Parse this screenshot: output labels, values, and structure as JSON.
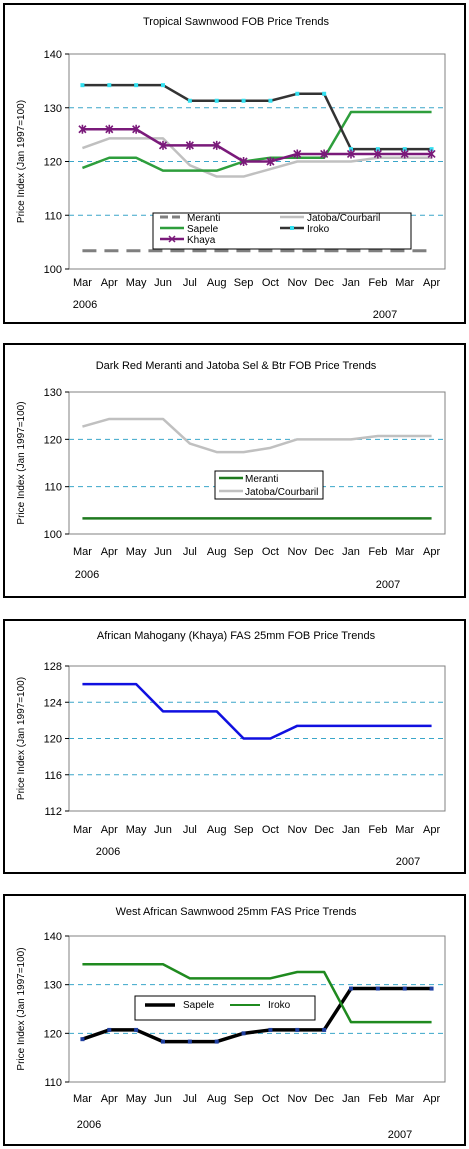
{
  "categories": [
    "Mar",
    "Apr",
    "May",
    "Jun",
    "Jul",
    "Aug",
    "Sep",
    "Oct",
    "Nov",
    "Dec",
    "Jan",
    "Feb",
    "Mar",
    "Apr"
  ],
  "year_labels": [
    "2006",
    "2007"
  ],
  "chart_data": [
    {
      "type": "line",
      "title": "Tropical Sawnwood FOB Price Trends",
      "ylabel": "Price Index (Jan 1997=100)",
      "xlabel": "",
      "ylim": [
        100,
        140
      ],
      "yticks": [
        100,
        110,
        120,
        130,
        140
      ],
      "grid": true,
      "legend_position": "bottom-center",
      "year_labels": [
        "2006",
        "2007"
      ],
      "categories": [
        "Mar",
        "Apr",
        "May",
        "Jun",
        "Jul",
        "Aug",
        "Sep",
        "Oct",
        "Nov",
        "Dec",
        "Jan",
        "Feb",
        "Mar",
        "Apr"
      ],
      "series": [
        {
          "name": "Meranti",
          "color": "#7f7f7f",
          "style": "dashed",
          "values": [
            103.4,
            103.4,
            103.4,
            103.4,
            103.4,
            103.4,
            103.4,
            103.4,
            103.4,
            103.4,
            103.4,
            103.4,
            103.4,
            103.4
          ]
        },
        {
          "name": "Jatoba/Courbaril",
          "color": "#c0c0c0",
          "style": "solid",
          "values": [
            122.5,
            124.3,
            124.3,
            124.3,
            119.3,
            117.2,
            117.2,
            118.6,
            120,
            120,
            120,
            120.7,
            120.7,
            120.7
          ]
        },
        {
          "name": "Sapele",
          "color": "#2e9e3c",
          "style": "solid",
          "values": [
            118.8,
            120.7,
            120.7,
            118.3,
            118.3,
            118.3,
            120,
            120.7,
            120.7,
            120.7,
            129.2,
            129.2,
            129.2,
            129.2
          ]
        },
        {
          "name": "Iroko",
          "color": "#333333",
          "style": "solid",
          "marker": "cyan-square",
          "values": [
            134.2,
            134.2,
            134.2,
            134.2,
            131.3,
            131.3,
            131.3,
            131.3,
            132.6,
            132.6,
            122.3,
            122.3,
            122.3,
            122.3
          ]
        },
        {
          "name": "Khaya",
          "color": "#7a1a7a",
          "style": "solid",
          "marker": "star",
          "values": [
            126,
            126,
            126,
            123,
            123,
            123,
            120,
            120,
            121.4,
            121.4,
            121.4,
            121.4,
            121.4,
            121.4
          ]
        }
      ]
    },
    {
      "type": "line",
      "title": "Dark Red Meranti and Jatoba Sel & Btr FOB Price Trends",
      "ylabel": "Price Index (Jan 1997=100)",
      "xlabel": "",
      "ylim": [
        100,
        130
      ],
      "yticks": [
        100,
        110,
        120,
        130
      ],
      "grid": true,
      "legend_position": "center",
      "year_labels": [
        "2006",
        "2007"
      ],
      "categories": [
        "Mar",
        "Apr",
        "May",
        "Jun",
        "Jul",
        "Aug",
        "Sep",
        "Oct",
        "Nov",
        "Dec",
        "Jan",
        "Feb",
        "Mar",
        "Apr"
      ],
      "series": [
        {
          "name": "Meranti",
          "color": "#1f7a1f",
          "style": "solid",
          "values": [
            103.3,
            103.3,
            103.3,
            103.3,
            103.3,
            103.3,
            103.3,
            103.3,
            103.3,
            103.3,
            103.3,
            103.3,
            103.3,
            103.3
          ]
        },
        {
          "name": "Jatoba/Courbaril",
          "color": "#c0c0c0",
          "style": "solid",
          "values": [
            122.7,
            124.3,
            124.3,
            124.3,
            119.1,
            117.3,
            117.3,
            118.2,
            120,
            120,
            120,
            120.7,
            120.7,
            120.7
          ]
        }
      ]
    },
    {
      "type": "line",
      "title": "African Mahogany (Khaya) FAS 25mm FOB Price Trends",
      "ylabel": "Price Index (Jan 1997=100)",
      "xlabel": "",
      "ylim": [
        112,
        128
      ],
      "yticks": [
        112,
        116,
        120,
        124,
        128
      ],
      "grid": true,
      "year_labels": [
        "2006",
        "2007"
      ],
      "categories": [
        "Mar",
        "Apr",
        "May",
        "Jun",
        "Jul",
        "Aug",
        "Sep",
        "Oct",
        "Nov",
        "Dec",
        "Jan",
        "Feb",
        "Mar",
        "Apr"
      ],
      "series": [
        {
          "color": "#1010e0",
          "style": "solid",
          "values": [
            126,
            126,
            126,
            123,
            123,
            123,
            120,
            120,
            121.4,
            121.4,
            121.4,
            121.4,
            121.4,
            121.4
          ]
        }
      ]
    },
    {
      "type": "line",
      "title": "West  African Sawnwood 25mm FAS Price Trends",
      "ylabel": "Price Index (Jan 1997=100)",
      "xlabel": "",
      "ylim": [
        110,
        140
      ],
      "yticks": [
        110,
        120,
        130,
        140
      ],
      "grid": true,
      "legend_position": "center-left",
      "year_labels": [
        "2006",
        "2007"
      ],
      "categories": [
        "Mar",
        "Apr",
        "May",
        "Jun",
        "Jul",
        "Aug",
        "Sep",
        "Oct",
        "Nov",
        "Dec",
        "Jan",
        "Feb",
        "Mar",
        "Apr"
      ],
      "series": [
        {
          "name": "Sapele",
          "color": "#000000",
          "style": "solid",
          "width": 3.5,
          "values": [
            118.8,
            120.7,
            120.7,
            118.3,
            118.3,
            118.3,
            120,
            120.7,
            120.7,
            120.7,
            129.2,
            129.2,
            129.2,
            129.2
          ]
        },
        {
          "name": "Iroko",
          "color": "#1f8a1f",
          "style": "solid",
          "values": [
            134.2,
            134.2,
            134.2,
            134.2,
            131.3,
            131.3,
            131.3,
            131.3,
            132.6,
            132.6,
            122.3,
            122.3,
            122.3,
            122.3
          ]
        }
      ]
    }
  ]
}
